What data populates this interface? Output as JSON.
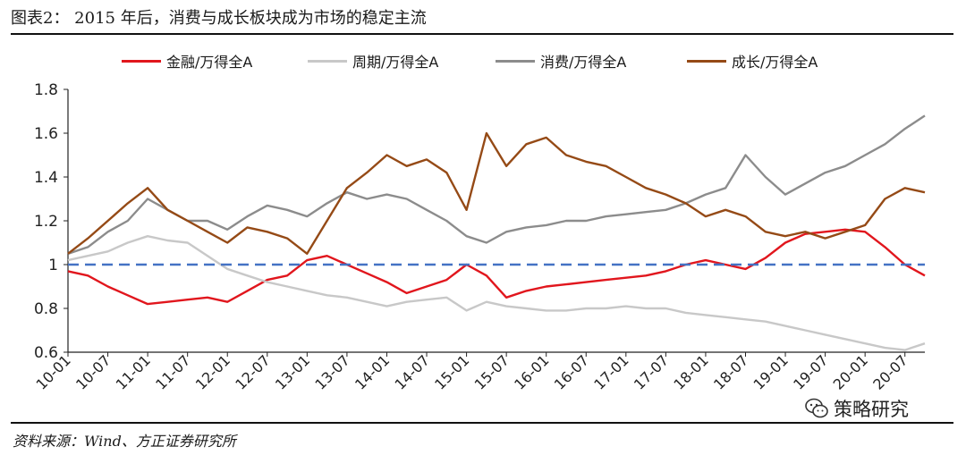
{
  "figure": {
    "title": "图表2：   2015 年后，消费与成长板块成为市场的稳定主流",
    "source": "资料来源：Wind、方正证券研究所",
    "watermark": "策略研究"
  },
  "colors": {
    "finance": "#e1161d",
    "cyclical": "#c8c8c8",
    "consumer": "#8c8c8c",
    "growth": "#954a16",
    "baseline": "#4472c4"
  },
  "chart_data": {
    "type": "line",
    "x": [
      "10-01",
      "10-04",
      "10-07",
      "10-10",
      "11-01",
      "11-04",
      "11-07",
      "11-10",
      "12-01",
      "12-04",
      "12-07",
      "12-10",
      "13-01",
      "13-04",
      "13-07",
      "13-10",
      "14-01",
      "14-04",
      "14-07",
      "14-10",
      "15-01",
      "15-04",
      "15-07",
      "15-10",
      "16-01",
      "16-04",
      "16-07",
      "16-10",
      "17-01",
      "17-04",
      "17-07",
      "17-10",
      "18-01",
      "18-04",
      "18-07",
      "18-10",
      "19-01",
      "19-04",
      "19-07",
      "19-10",
      "20-01",
      "20-04",
      "20-07",
      "20-10"
    ],
    "x_ticks": [
      "10-01",
      "10-07",
      "11-01",
      "11-07",
      "12-01",
      "12-07",
      "13-01",
      "13-07",
      "14-01",
      "14-07",
      "15-01",
      "15-07",
      "16-01",
      "16-07",
      "17-01",
      "17-07",
      "18-01",
      "18-07",
      "19-01",
      "19-07",
      "20-01",
      "20-07"
    ],
    "ylim": [
      0.6,
      1.8
    ],
    "y_ticks": [
      "0.6",
      "0.8",
      "1",
      "1.2",
      "1.4",
      "1.6",
      "1.8"
    ],
    "baseline": 1,
    "grid": false,
    "legend_position": "top",
    "series": [
      {
        "name": "金融/万得全A",
        "key": "finance",
        "values": [
          0.97,
          0.95,
          0.9,
          0.86,
          0.82,
          0.83,
          0.84,
          0.85,
          0.83,
          0.88,
          0.93,
          0.95,
          1.02,
          1.04,
          1.0,
          0.96,
          0.92,
          0.87,
          0.9,
          0.93,
          1.0,
          0.95,
          0.85,
          0.88,
          0.9,
          0.91,
          0.92,
          0.93,
          0.94,
          0.95,
          0.97,
          1.0,
          1.02,
          1.0,
          0.98,
          1.03,
          1.1,
          1.14,
          1.15,
          1.16,
          1.15,
          1.08,
          1.0,
          0.95
        ]
      },
      {
        "name": "周期/万得全A",
        "key": "cyclical",
        "values": [
          1.02,
          1.04,
          1.06,
          1.1,
          1.13,
          1.11,
          1.1,
          1.04,
          0.98,
          0.95,
          0.92,
          0.9,
          0.88,
          0.86,
          0.85,
          0.83,
          0.81,
          0.83,
          0.84,
          0.85,
          0.79,
          0.83,
          0.81,
          0.8,
          0.79,
          0.79,
          0.8,
          0.8,
          0.81,
          0.8,
          0.8,
          0.78,
          0.77,
          0.76,
          0.75,
          0.74,
          0.72,
          0.7,
          0.68,
          0.66,
          0.64,
          0.62,
          0.61,
          0.64
        ]
      },
      {
        "name": "消费/万得全A",
        "key": "consumer",
        "values": [
          1.05,
          1.08,
          1.15,
          1.2,
          1.3,
          1.25,
          1.2,
          1.2,
          1.16,
          1.22,
          1.27,
          1.25,
          1.22,
          1.28,
          1.33,
          1.3,
          1.32,
          1.3,
          1.25,
          1.2,
          1.13,
          1.1,
          1.15,
          1.17,
          1.18,
          1.2,
          1.2,
          1.22,
          1.23,
          1.24,
          1.25,
          1.28,
          1.32,
          1.35,
          1.5,
          1.4,
          1.32,
          1.37,
          1.42,
          1.45,
          1.5,
          1.55,
          1.62,
          1.68
        ]
      },
      {
        "name": "成长/万得全A",
        "key": "growth",
        "values": [
          1.05,
          1.12,
          1.2,
          1.28,
          1.35,
          1.25,
          1.2,
          1.15,
          1.1,
          1.17,
          1.15,
          1.12,
          1.05,
          1.2,
          1.35,
          1.42,
          1.5,
          1.45,
          1.48,
          1.42,
          1.25,
          1.6,
          1.45,
          1.55,
          1.58,
          1.5,
          1.47,
          1.45,
          1.4,
          1.35,
          1.32,
          1.28,
          1.22,
          1.25,
          1.22,
          1.15,
          1.13,
          1.15,
          1.12,
          1.15,
          1.18,
          1.3,
          1.35,
          1.33
        ]
      }
    ]
  }
}
